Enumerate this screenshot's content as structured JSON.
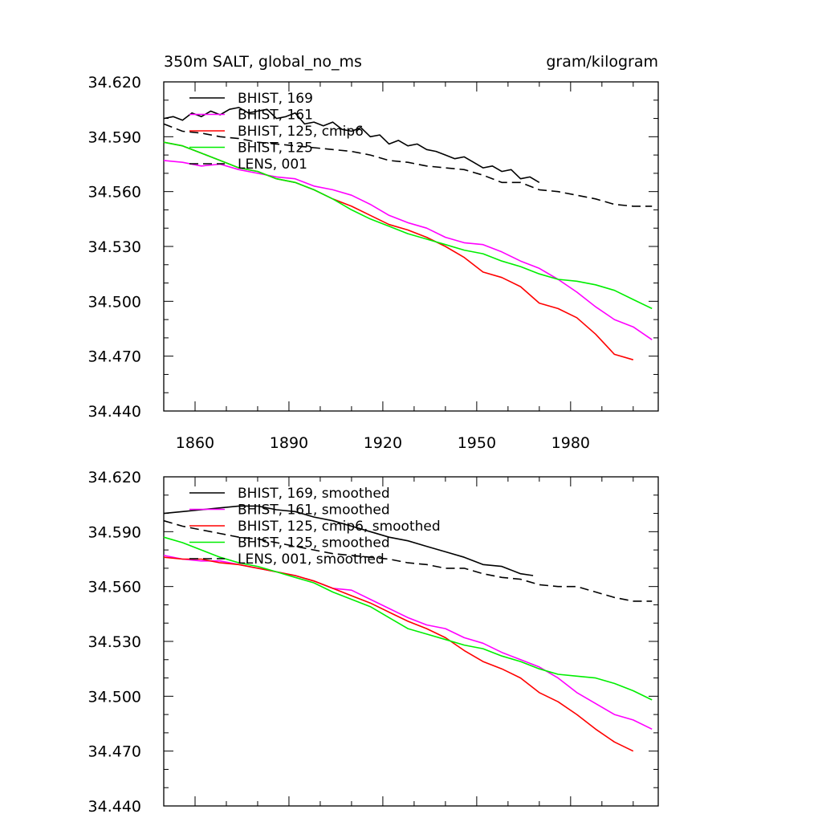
{
  "chart_data": [
    {
      "type": "line",
      "title_left": "350m SALT, global_no_ms",
      "title_right": "gram/kilogram",
      "xlim": [
        1850,
        2008
      ],
      "ylim": [
        34.44,
        34.62
      ],
      "yticks": [
        "34.620",
        "34.590",
        "34.560",
        "34.530",
        "34.500",
        "34.470",
        "34.440"
      ],
      "xticks": [
        "1860",
        "1890",
        "1920",
        "1950",
        "1980"
      ],
      "series": [
        {
          "name": "BHIST, 169",
          "color": "#000000",
          "dash": "solid",
          "x": [
            1850,
            1853,
            1856,
            1859,
            1862,
            1865,
            1868,
            1871,
            1874,
            1877,
            1880,
            1883,
            1886,
            1889,
            1892,
            1895,
            1898,
            1901,
            1904,
            1907,
            1910,
            1913,
            1916,
            1919,
            1922,
            1925,
            1928,
            1931,
            1934,
            1937,
            1940,
            1943,
            1946,
            1949,
            1952,
            1955,
            1958,
            1961,
            1964,
            1967,
            1970
          ],
          "y": [
            34.6,
            34.601,
            34.599,
            34.603,
            34.601,
            34.604,
            34.602,
            34.605,
            34.606,
            34.603,
            34.604,
            34.605,
            34.6,
            34.601,
            34.603,
            34.597,
            34.598,
            34.596,
            34.598,
            34.594,
            34.593,
            34.595,
            34.59,
            34.591,
            34.586,
            34.588,
            34.585,
            34.586,
            34.583,
            34.582,
            34.58,
            34.578,
            34.579,
            34.576,
            34.573,
            34.574,
            34.571,
            34.572,
            34.567,
            34.568,
            34.565
          ]
        },
        {
          "name": "BHIST, 161",
          "color": "#ff00ff",
          "dash": "solid",
          "x": [
            1850,
            1856,
            1862,
            1868,
            1874,
            1880,
            1886,
            1892,
            1898,
            1904,
            1910,
            1916,
            1922,
            1928,
            1934,
            1940,
            1946,
            1952,
            1958,
            1964,
            1970,
            1976,
            1982,
            1988,
            1994,
            2000,
            2006
          ],
          "y": [
            34.577,
            34.576,
            34.574,
            34.575,
            34.572,
            34.57,
            34.568,
            34.567,
            34.563,
            34.561,
            34.558,
            34.553,
            34.547,
            34.543,
            34.54,
            34.535,
            34.532,
            34.531,
            34.527,
            34.522,
            34.518,
            34.512,
            34.505,
            34.497,
            34.49,
            34.486,
            34.479
          ]
        },
        {
          "name": "BHIST, 125, cmip6",
          "color": "#ff0000",
          "dash": "solid",
          "x": [
            1850,
            1856,
            1862,
            1868,
            1874,
            1880,
            1886,
            1892,
            1898,
            1904,
            1910,
            1916,
            1922,
            1928,
            1934,
            1940,
            1946,
            1952,
            1958,
            1964,
            1970,
            1976,
            1982,
            1988,
            1994,
            2000
          ],
          "y": [
            34.587,
            34.585,
            34.581,
            34.577,
            34.573,
            34.571,
            34.567,
            34.565,
            34.561,
            34.556,
            34.552,
            34.547,
            34.542,
            34.539,
            34.535,
            34.53,
            34.524,
            34.516,
            34.513,
            34.508,
            34.499,
            34.496,
            34.491,
            34.482,
            34.471,
            34.468
          ]
        },
        {
          "name": "BHIST, 125",
          "color": "#00ee00",
          "dash": "solid",
          "x": [
            1850,
            1856,
            1862,
            1868,
            1874,
            1880,
            1886,
            1892,
            1898,
            1904,
            1910,
            1916,
            1922,
            1928,
            1934,
            1940,
            1946,
            1952,
            1958,
            1964,
            1970,
            1976,
            1982,
            1988,
            1994,
            2000,
            2006
          ],
          "y": [
            34.587,
            34.585,
            34.581,
            34.577,
            34.573,
            34.571,
            34.567,
            34.565,
            34.561,
            34.556,
            34.55,
            34.545,
            34.541,
            34.537,
            34.534,
            34.531,
            34.528,
            34.526,
            34.522,
            34.519,
            34.515,
            34.512,
            34.511,
            34.509,
            34.506,
            34.501,
            34.496
          ]
        },
        {
          "name": "LENS, 001",
          "color": "#000000",
          "dash": "dashed",
          "x": [
            1850,
            1856,
            1862,
            1868,
            1874,
            1880,
            1886,
            1892,
            1898,
            1904,
            1910,
            1916,
            1922,
            1928,
            1934,
            1940,
            1946,
            1952,
            1958,
            1964,
            1970,
            1976,
            1982,
            1988,
            1994,
            2000,
            2006
          ],
          "y": [
            34.597,
            34.593,
            34.592,
            34.59,
            34.589,
            34.587,
            34.586,
            34.585,
            34.584,
            34.583,
            34.582,
            34.58,
            34.577,
            34.576,
            34.574,
            34.573,
            34.572,
            34.569,
            34.565,
            34.565,
            34.561,
            34.56,
            34.558,
            34.556,
            34.553,
            34.552,
            34.552
          ]
        }
      ]
    },
    {
      "type": "line",
      "xlim": [
        1850,
        2008
      ],
      "ylim": [
        34.44,
        34.62
      ],
      "yticks": [
        "34.620",
        "34.590",
        "34.560",
        "34.530",
        "34.500",
        "34.470",
        "34.440"
      ],
      "series": [
        {
          "name": "BHIST, 169, smoothed",
          "color": "#000000",
          "dash": "solid",
          "x": [
            1850,
            1856,
            1862,
            1868,
            1874,
            1880,
            1886,
            1892,
            1898,
            1904,
            1910,
            1916,
            1922,
            1928,
            1934,
            1940,
            1946,
            1952,
            1958,
            1964,
            1968
          ],
          "y": [
            34.6,
            34.601,
            34.602,
            34.603,
            34.604,
            34.604,
            34.602,
            34.601,
            34.598,
            34.596,
            34.593,
            34.59,
            34.587,
            34.585,
            34.582,
            34.579,
            34.576,
            34.572,
            34.571,
            34.567,
            34.566
          ]
        },
        {
          "name": "BHIST, 161, smoothed",
          "color": "#ff00ff",
          "dash": "solid",
          "x": [
            1850,
            1856,
            1862,
            1868,
            1874,
            1880,
            1886,
            1892,
            1898,
            1904,
            1910,
            1916,
            1922,
            1928,
            1934,
            1940,
            1946,
            1952,
            1958,
            1964,
            1970,
            1976,
            1982,
            1988,
            1994,
            2000,
            2006
          ],
          "y": [
            34.577,
            34.575,
            34.574,
            34.574,
            34.572,
            34.57,
            34.568,
            34.566,
            34.563,
            34.559,
            34.558,
            34.553,
            34.548,
            34.543,
            34.539,
            34.537,
            34.532,
            34.529,
            34.524,
            34.52,
            34.516,
            34.51,
            34.502,
            34.496,
            34.49,
            34.487,
            34.482
          ]
        },
        {
          "name": "BHIST, 125, cmip6, smoothed",
          "color": "#ff0000",
          "dash": "solid",
          "x": [
            1850,
            1856,
            1862,
            1868,
            1874,
            1880,
            1886,
            1892,
            1898,
            1904,
            1910,
            1916,
            1922,
            1928,
            1934,
            1940,
            1946,
            1952,
            1958,
            1964,
            1970,
            1976,
            1982,
            1988,
            1994,
            2000
          ],
          "y": [
            34.576,
            34.575,
            34.575,
            34.573,
            34.572,
            34.57,
            34.568,
            34.566,
            34.563,
            34.559,
            34.555,
            34.551,
            34.546,
            34.541,
            34.537,
            34.532,
            34.525,
            34.519,
            34.515,
            34.51,
            34.502,
            34.497,
            34.49,
            34.482,
            34.475,
            34.47
          ]
        },
        {
          "name": "BHIST, 125, smoothed",
          "color": "#00ee00",
          "dash": "solid",
          "x": [
            1850,
            1856,
            1862,
            1868,
            1874,
            1880,
            1886,
            1892,
            1898,
            1904,
            1910,
            1916,
            1922,
            1928,
            1934,
            1940,
            1946,
            1952,
            1958,
            1964,
            1970,
            1976,
            1982,
            1988,
            1994,
            2000,
            2006
          ],
          "y": [
            34.587,
            34.584,
            34.58,
            34.576,
            34.573,
            34.571,
            34.568,
            34.565,
            34.562,
            34.557,
            34.553,
            34.549,
            34.543,
            34.537,
            34.534,
            34.531,
            34.528,
            34.526,
            34.522,
            34.519,
            34.515,
            34.512,
            34.511,
            34.51,
            34.507,
            34.503,
            34.498
          ]
        },
        {
          "name": "LENS, 001, smoothed",
          "color": "#000000",
          "dash": "dashed",
          "x": [
            1850,
            1856,
            1862,
            1868,
            1874,
            1880,
            1886,
            1892,
            1898,
            1904,
            1910,
            1916,
            1922,
            1928,
            1934,
            1940,
            1946,
            1952,
            1958,
            1964,
            1970,
            1976,
            1982,
            1988,
            1994,
            2000,
            2006
          ],
          "y": [
            34.596,
            34.593,
            34.591,
            34.589,
            34.587,
            34.586,
            34.584,
            34.582,
            34.58,
            34.578,
            34.577,
            34.576,
            34.575,
            34.573,
            34.572,
            34.57,
            34.57,
            34.567,
            34.565,
            34.564,
            34.561,
            34.56,
            34.56,
            34.557,
            34.554,
            34.552,
            34.552
          ]
        }
      ]
    }
  ]
}
